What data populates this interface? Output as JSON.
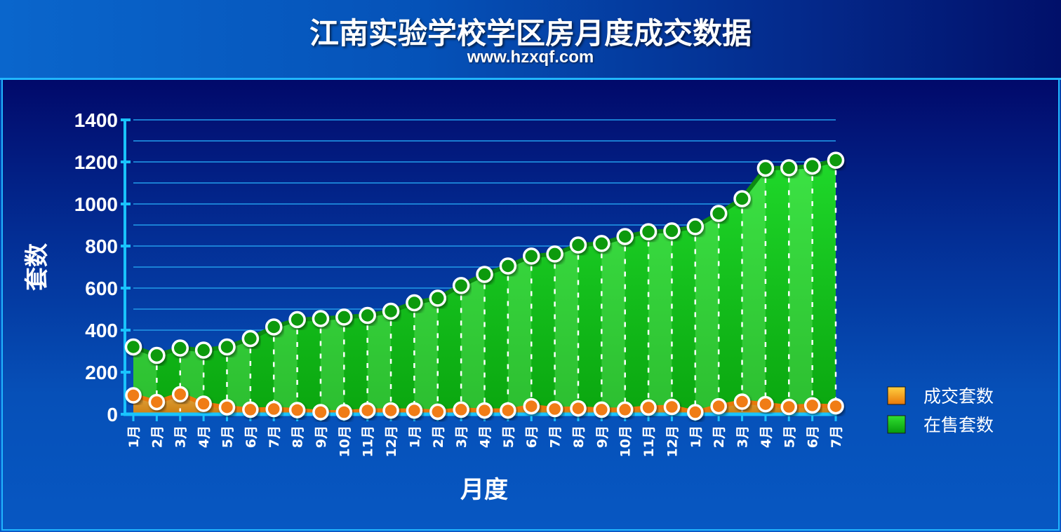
{
  "header": {
    "title": "江南实验学校学区房月度成交数据",
    "subtitle": "www.hzxqf.com"
  },
  "chart_data": {
    "type": "area",
    "title": "江南实验学校学区房月度成交数据",
    "subtitle": "www.hzxqf.com",
    "xlabel": "月度",
    "ylabel": "套数",
    "ylim": [
      0,
      1400
    ],
    "yticks": [
      "0",
      "200",
      "400",
      "600",
      "800",
      "1000",
      "1200",
      "1400"
    ],
    "grid": true,
    "legend_position": "right",
    "categories": [
      "1月",
      "2月",
      "3月",
      "4月",
      "5月",
      "6月",
      "7月",
      "8月",
      "9月",
      "10月",
      "11月",
      "12月",
      "1月",
      "2月",
      "3月",
      "4月",
      "5月",
      "6月",
      "7月",
      "8月",
      "9月",
      "10月",
      "11月",
      "12月",
      "1月",
      "2月",
      "3月",
      "4月",
      "5月",
      "6月",
      "7月"
    ],
    "series": [
      {
        "name": "成交套数",
        "color": "#f08a1c",
        "values": [
          90,
          58,
          95,
          50,
          33,
          22,
          25,
          20,
          10,
          10,
          18,
          18,
          18,
          12,
          22,
          18,
          18,
          38,
          25,
          28,
          22,
          22,
          32,
          35,
          10,
          38,
          60,
          48,
          35,
          42,
          38
        ]
      },
      {
        "name": "在售套数",
        "color": "#16c61c",
        "values": [
          320,
          280,
          315,
          305,
          320,
          360,
          415,
          450,
          455,
          462,
          470,
          490,
          530,
          552,
          612,
          665,
          705,
          752,
          762,
          805,
          812,
          845,
          868,
          872,
          892,
          955,
          1025,
          1170,
          1172,
          1180,
          1208
        ]
      }
    ]
  }
}
